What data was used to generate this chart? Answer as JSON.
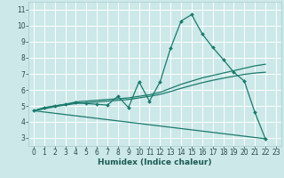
{
  "xlabel": "Humidex (Indice chaleur)",
  "bg_color": "#cce8e8",
  "line_color": "#1a7a6e",
  "grid_color": "#ffffff",
  "xlim": [
    -0.5,
    23.5
  ],
  "ylim": [
    2.5,
    11.5
  ],
  "xticks": [
    0,
    1,
    2,
    3,
    4,
    5,
    6,
    7,
    8,
    9,
    10,
    11,
    12,
    13,
    14,
    15,
    16,
    17,
    18,
    19,
    20,
    21,
    22,
    23
  ],
  "yticks": [
    3,
    4,
    5,
    6,
    7,
    8,
    9,
    10,
    11
  ],
  "lines": [
    {
      "x": [
        0,
        1,
        2,
        3,
        4,
        5,
        6,
        7,
        8,
        9,
        10,
        11,
        12,
        13,
        14,
        15,
        16,
        17,
        18,
        19,
        20,
        21,
        22
      ],
      "y": [
        4.7,
        4.9,
        5.0,
        5.1,
        5.2,
        5.15,
        5.1,
        5.05,
        5.6,
        4.9,
        6.5,
        5.3,
        6.5,
        8.6,
        10.3,
        10.7,
        9.5,
        8.65,
        7.9,
        7.1,
        6.55,
        4.6,
        2.95
      ],
      "has_markers": true
    },
    {
      "x": [
        0,
        1,
        2,
        3,
        4,
        5,
        6,
        7,
        8,
        9,
        10,
        11,
        12,
        13,
        14,
        15,
        16,
        17,
        18,
        19,
        20,
        21,
        22
      ],
      "y": [
        4.7,
        4.85,
        5.0,
        5.1,
        5.25,
        5.3,
        5.35,
        5.4,
        5.45,
        5.5,
        5.6,
        5.7,
        5.85,
        6.1,
        6.35,
        6.55,
        6.75,
        6.9,
        7.05,
        7.2,
        7.35,
        7.5,
        7.6
      ],
      "has_markers": false
    },
    {
      "x": [
        0,
        1,
        2,
        3,
        4,
        5,
        6,
        7,
        8,
        9,
        10,
        11,
        12,
        13,
        14,
        15,
        16,
        17,
        18,
        19,
        20,
        21,
        22
      ],
      "y": [
        4.7,
        4.82,
        4.95,
        5.05,
        5.15,
        5.2,
        5.25,
        5.3,
        5.35,
        5.4,
        5.5,
        5.6,
        5.72,
        5.9,
        6.1,
        6.28,
        6.45,
        6.6,
        6.73,
        6.85,
        6.97,
        7.05,
        7.1
      ],
      "has_markers": false
    },
    {
      "x": [
        0,
        22
      ],
      "y": [
        4.7,
        2.95
      ],
      "has_markers": false
    }
  ],
  "xlabel_color": "#1a5a52",
  "xlabel_fontsize": 6.5,
  "tick_fontsize": 5.5,
  "tick_color": "#2a4a48"
}
